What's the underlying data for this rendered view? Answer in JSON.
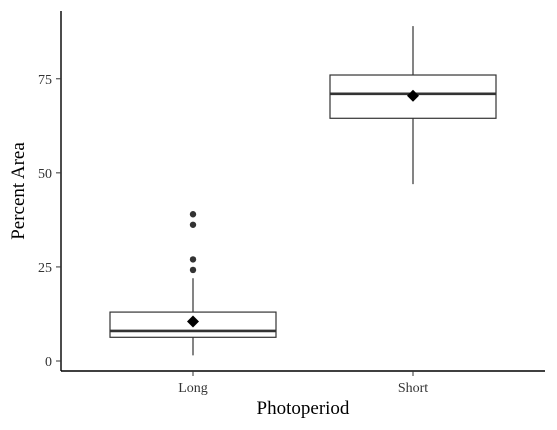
{
  "chart_data": {
    "type": "box",
    "xlabel": "Photoperiod",
    "ylabel": "Percent Area",
    "categories": [
      "Long",
      "Short"
    ],
    "ylim": [
      -2,
      92
    ],
    "yticks": [
      0,
      25,
      50,
      75
    ],
    "grid": false,
    "boxes": [
      {
        "category": "Long",
        "min": 1.5,
        "q1": 6.3,
        "median": 8.0,
        "q3": 13.0,
        "max": 22.0,
        "mean": 10.5,
        "outliers": [
          24.2,
          27.0,
          36.2,
          39.0
        ]
      },
      {
        "category": "Short",
        "min": 47.0,
        "q1": 64.5,
        "median": 71.0,
        "q3": 76.0,
        "max": 89.0,
        "mean": 70.5,
        "outliers": []
      }
    ],
    "mean_marker": "diamond",
    "colors": {
      "box_stroke": "#333333",
      "box_fill": "#ffffff",
      "mean": "#000000",
      "outlier": "#333333"
    }
  }
}
